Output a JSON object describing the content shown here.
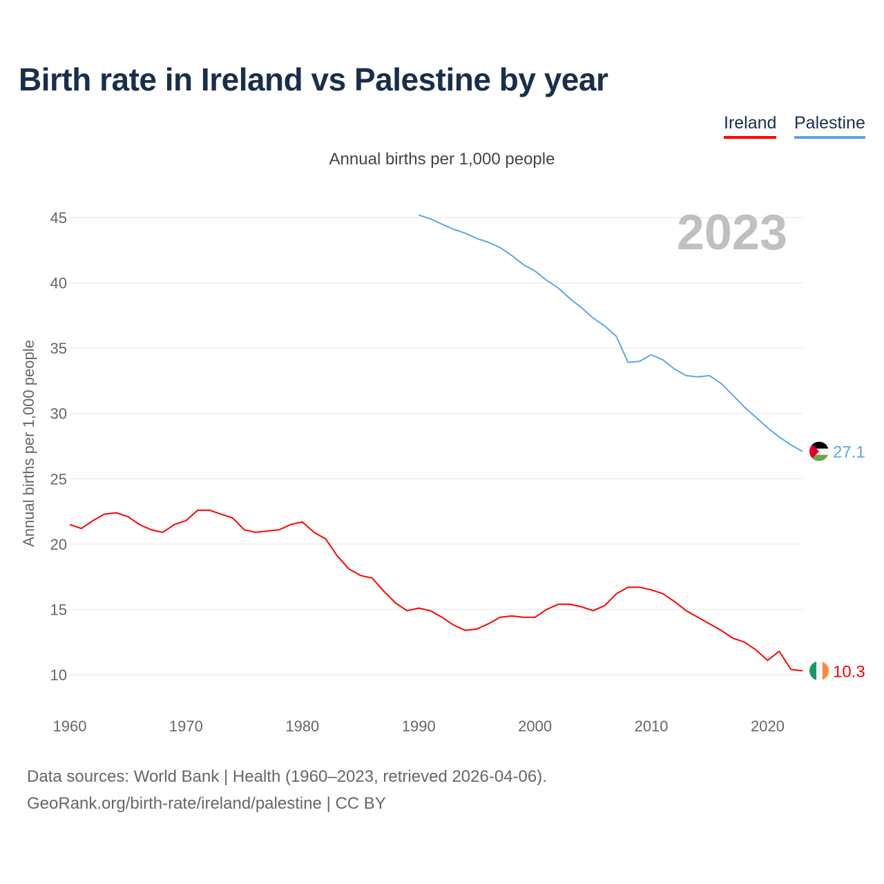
{
  "title": "Birth rate in Ireland vs Palestine by year",
  "legend": [
    "Ireland",
    "Palestine"
  ],
  "footer": {
    "line1": "Data sources: World Bank | Health (1960–2023, retrieved 2026-04-06).",
    "line2": "GeoRank.org/birth-rate/ireland/palestine | CC BY"
  },
  "colors": {
    "ireland": "#ff0000",
    "palestine": "#5aa5ee"
  },
  "chart_data": {
    "type": "line",
    "title": "Birth rate in Ireland vs Palestine by year",
    "subtitle": "Annual births per 1,000 people",
    "xlabel": "",
    "ylabel": "Annual births per 1,000 people",
    "year_label": "2023",
    "xlim": [
      1960,
      2023
    ],
    "ylim": [
      8,
      46
    ],
    "x_ticks": [
      1960,
      1970,
      1980,
      1990,
      2000,
      2010,
      2020
    ],
    "y_ticks": [
      10,
      15,
      20,
      25,
      30,
      35,
      40,
      45
    ],
    "grid": true,
    "legend_position": "top-right",
    "series": [
      {
        "name": "Ireland",
        "color": "#ff0000",
        "start_year": 1960,
        "end_label": "10.3",
        "values": [
          21.5,
          21.2,
          21.8,
          22.3,
          22.4,
          22.1,
          21.5,
          21.1,
          20.9,
          21.5,
          21.8,
          22.6,
          22.6,
          22.3,
          22.0,
          21.1,
          20.9,
          21.0,
          21.1,
          21.5,
          21.7,
          20.9,
          20.4,
          19.1,
          18.1,
          17.6,
          17.4,
          16.4,
          15.5,
          14.9,
          15.1,
          14.9,
          14.4,
          13.8,
          13.4,
          13.5,
          13.9,
          14.4,
          14.5,
          14.4,
          14.4,
          15.0,
          15.4,
          15.4,
          15.2,
          14.9,
          15.3,
          16.2,
          16.7,
          16.7,
          16.5,
          16.2,
          15.6,
          14.9,
          14.4,
          13.9,
          13.4,
          12.8,
          12.5,
          11.9,
          11.1,
          11.8,
          10.4,
          10.3
        ]
      },
      {
        "name": "Palestine",
        "color": "#5aa5ee",
        "start_year": 1990,
        "end_label": "27.1",
        "values": [
          45.2,
          44.9,
          44.5,
          44.1,
          43.8,
          43.4,
          43.1,
          42.7,
          42.1,
          41.4,
          40.9,
          40.2,
          39.6,
          38.8,
          38.1,
          37.3,
          36.7,
          35.9,
          33.9,
          34.0,
          34.5,
          34.1,
          33.4,
          32.9,
          32.8,
          32.9,
          32.3,
          31.4,
          30.5,
          29.7,
          28.9,
          28.2,
          27.6,
          27.1
        ]
      }
    ]
  }
}
